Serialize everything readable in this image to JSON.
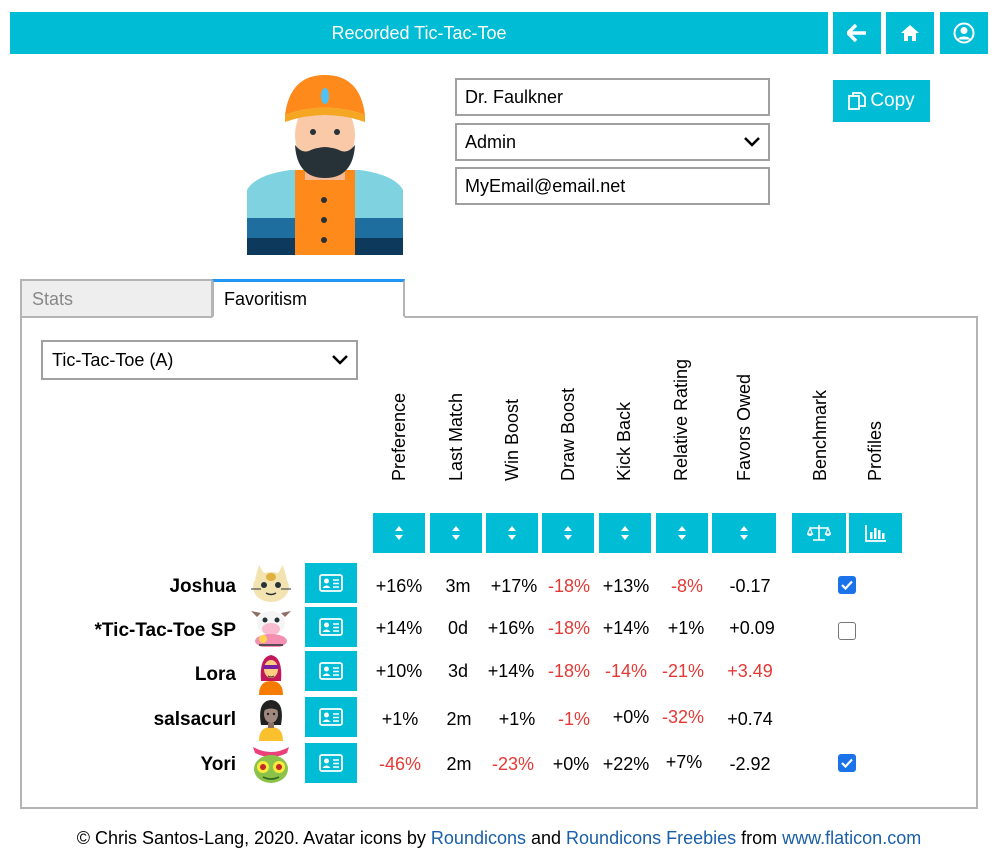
{
  "header": {
    "title": "Recorded Tic-Tac-Toe",
    "back_icon": "arrow-left-icon",
    "home_icon": "home-icon",
    "user_icon": "user-circle-icon"
  },
  "profile": {
    "name_value": "Dr. Faulkner",
    "role_value": "Admin",
    "email_value": "MyEmail@email.net",
    "copy_label": "Copy"
  },
  "tabs": [
    {
      "label": "Stats"
    },
    {
      "label": "Favoritism"
    }
  ],
  "game_select": {
    "value": "Tic-Tac-Toe (A)"
  },
  "columns": [
    "Preference",
    "Last Match",
    "Win Boost",
    "Draw Boost",
    "Kick Back",
    "Relative Rating",
    "Favors Owed",
    "Benchmark",
    "Profiles"
  ],
  "rows": [
    {
      "name": "Joshua",
      "preference": "+16%",
      "last_match": "3m",
      "win_boost": "+17%",
      "draw_boost": "-18%",
      "kick_back": "+13%",
      "relative_rating": "-8%",
      "favors_owed": "-0.17",
      "benchmark": true
    },
    {
      "name": "*Tic-Tac-Toe SP",
      "preference": "+14%",
      "last_match": "0d",
      "win_boost": "+16%",
      "draw_boost": "-18%",
      "kick_back": "+14%",
      "relative_rating": "+1%",
      "favors_owed": "+0.09",
      "benchmark": false
    },
    {
      "name": "Lora",
      "preference": "+10%",
      "last_match": "3d",
      "win_boost": "+14%",
      "draw_boost": "-18%",
      "kick_back": "-14%",
      "relative_rating": "-21%",
      "favors_owed": "+3.49",
      "benchmark": null
    },
    {
      "name": "salsacurl",
      "preference": "+1%",
      "last_match": "2m",
      "win_boost": "+1%",
      "draw_boost": "-1%",
      "kick_back": "+0%",
      "relative_rating": "-32%",
      "favors_owed": "+0.74",
      "benchmark": null
    },
    {
      "name": "Yori",
      "preference": "-46%",
      "last_match": "2m",
      "win_boost": "-23%",
      "draw_boost": "+0%",
      "kick_back": "+22%",
      "relative_rating": "+7%",
      "favors_owed": "-2.92",
      "benchmark": true
    }
  ],
  "footer": {
    "prefix": "© Chris Santos-Lang, 2020. Avatar icons by ",
    "link1": "Roundicons",
    "and": " and ",
    "link2": "Roundicons Freebies",
    "from": " from ",
    "link3": "www.flaticon.com"
  },
  "colors": {
    "accent": "#00bcd4",
    "negative": "#e53935",
    "link": "#1a5fa8"
  }
}
